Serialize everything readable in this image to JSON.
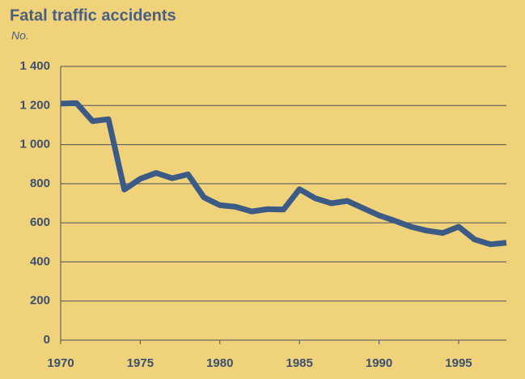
{
  "chart_data": {
    "type": "line",
    "title": "Fatal traffic accidents",
    "subtitle": "No.",
    "x": [
      1970,
      1971,
      1972,
      1973,
      1974,
      1975,
      1976,
      1977,
      1978,
      1979,
      1980,
      1981,
      1982,
      1983,
      1984,
      1985,
      1986,
      1987,
      1988,
      1989,
      1990,
      1991,
      1992,
      1993,
      1994,
      1995,
      1996,
      1997,
      1998
    ],
    "series": [
      {
        "name": "Fatal traffic accidents",
        "color": "#3b5a85",
        "values": [
          1210,
          1212,
          1120,
          1130,
          770,
          825,
          855,
          828,
          848,
          730,
          690,
          682,
          658,
          670,
          668,
          772,
          725,
          700,
          712,
          675,
          638,
          610,
          580,
          560,
          548,
          580,
          515,
          490,
          498
        ]
      }
    ],
    "xlim": [
      1970,
      1998
    ],
    "xticks": [
      1970,
      1975,
      1980,
      1985,
      1990,
      1995
    ],
    "ylim": [
      0,
      1400
    ],
    "yticks": [
      0,
      200,
      400,
      600,
      800,
      {
        "value": 1000,
        "label": "1 000"
      },
      {
        "value": 1200,
        "label": "1 200"
      },
      {
        "value": 1400,
        "label": "1 400"
      }
    ],
    "grid": true
  }
}
